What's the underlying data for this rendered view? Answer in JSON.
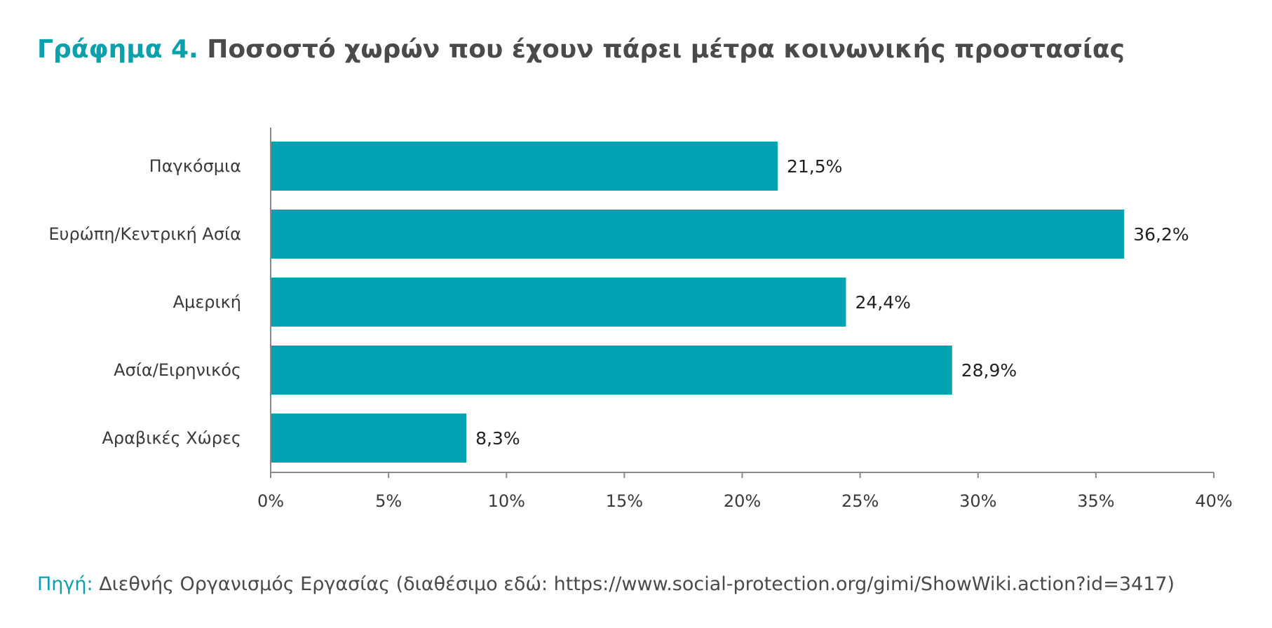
{
  "header": {
    "title_prefix": "Γράφημα 4.",
    "title_main": "Ποσοστό χωρών που έχουν πάρει μέτρα κοινωνικής προστασίας"
  },
  "footer": {
    "source_label": "Πηγή:",
    "source_text": "Διεθνής Οργανισμός Εργασίας (διαθέσιμο εδώ: https://www.social-protection.org/gimi/ShowWiki.action?id=3417)"
  },
  "colors": {
    "bar": "#00a3b1",
    "accent": "#0aa0ad",
    "axis": "#8a8a8a"
  },
  "chart_data": {
    "type": "bar",
    "orientation": "horizontal",
    "title": "Ποσοστό χωρών που έχουν πάρει μέτρα κοινωνικής προστασίας",
    "categories": [
      "Παγκόσμια",
      "Ευρώπη/Κεντρική Ασία",
      "Αμερική",
      "Ασία/Ειρηνικός",
      "Αραβικές Χώρες"
    ],
    "values": [
      21.5,
      36.2,
      24.4,
      28.9,
      8.3
    ],
    "value_labels": [
      "21,5%",
      "36,2%",
      "24,4%",
      "28,9%",
      "8,3%"
    ],
    "xlim": [
      0,
      40
    ],
    "xticks": [
      0,
      5,
      10,
      15,
      20,
      25,
      30,
      35,
      40
    ],
    "xtick_labels": [
      "0%",
      "5%",
      "10%",
      "15%",
      "20%",
      "25%",
      "30%",
      "35%",
      "40%"
    ],
    "grid": false,
    "legend": "none"
  }
}
